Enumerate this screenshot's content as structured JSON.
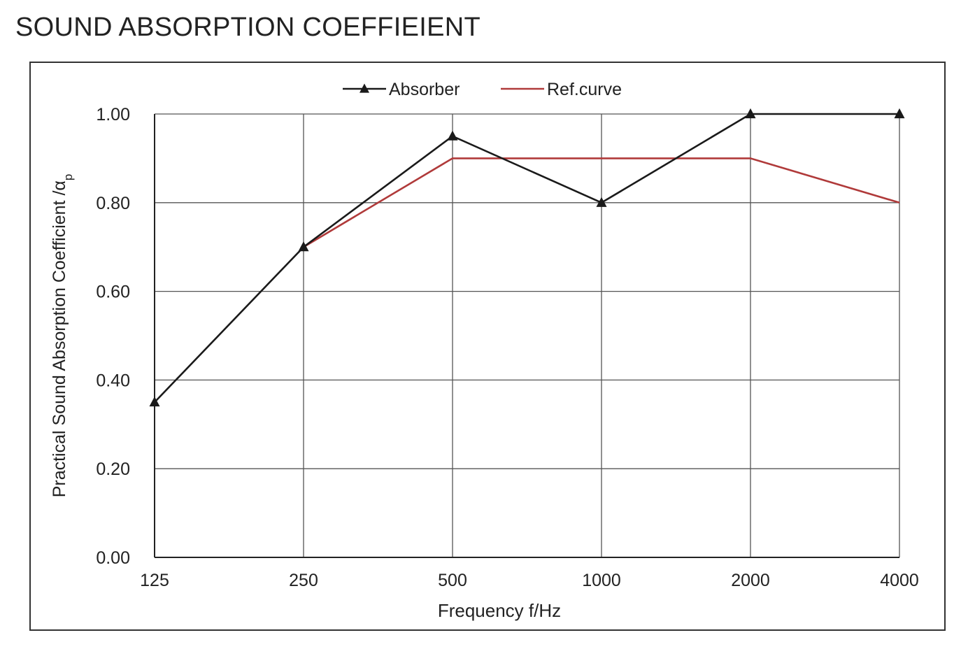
{
  "page": {
    "title": "SOUND ABSORPTION COEFFIEIENT"
  },
  "chart_data": {
    "type": "line",
    "x": [
      "125",
      "250",
      "500",
      "1000",
      "2000",
      "4000"
    ],
    "series": [
      {
        "name": "Absorber",
        "values": [
          0.35,
          0.7,
          0.95,
          0.8,
          1.0,
          1.0
        ],
        "color": "#1a1a1a",
        "marker": "triangle"
      },
      {
        "name": "Ref.curve",
        "values": [
          null,
          0.7,
          0.9,
          0.9,
          0.9,
          0.8
        ],
        "color": "#b03a3a",
        "marker": "none"
      }
    ],
    "xlabel": "Frequency f/Hz",
    "ylabel_main": "Practical Sound Absorption Coefficient /α",
    "ylabel_sub": "p",
    "yticks": [
      "0.00",
      "0.20",
      "0.40",
      "0.60",
      "0.80",
      "1.00"
    ],
    "ylim": [
      0,
      1
    ],
    "grid": true,
    "legend_position": "top-center"
  }
}
